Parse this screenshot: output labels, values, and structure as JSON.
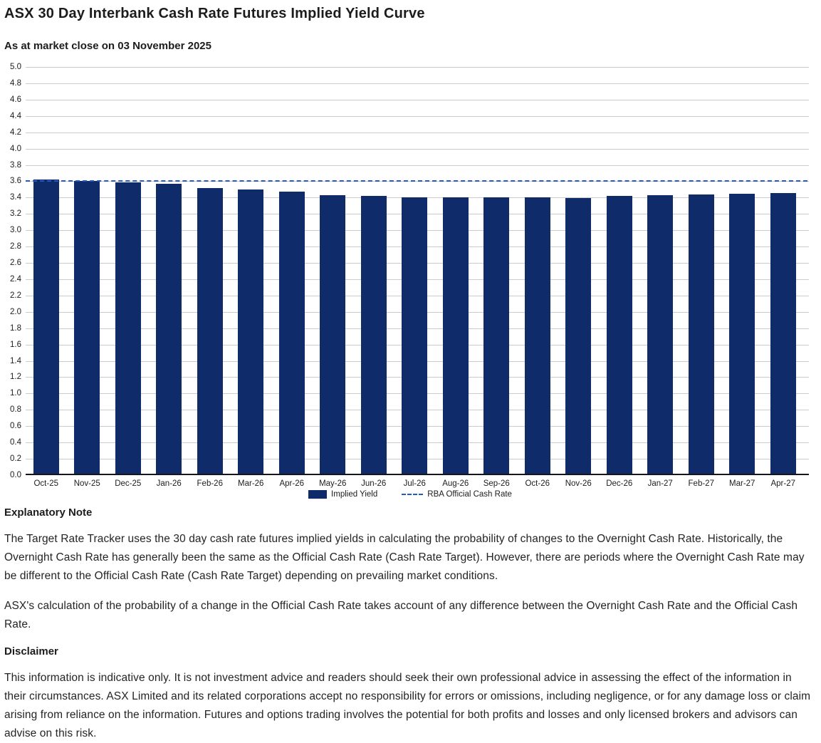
{
  "header": {
    "title": "ASX 30 Day Interbank Cash Rate Futures Implied Yield Curve",
    "subtitle": "As at market close on 03 November 2025"
  },
  "chart_data": {
    "type": "bar",
    "title": "ASX 30 Day Interbank Cash Rate Futures Implied Yield Curve",
    "xlabel": "",
    "ylabel": "",
    "ylim": [
      0.0,
      5.0
    ],
    "ytick_step": 0.2,
    "grid": true,
    "legend_position": "bottom",
    "categories": [
      "Oct-25",
      "Nov-25",
      "Dec-25",
      "Jan-26",
      "Feb-26",
      "Mar-26",
      "Apr-26",
      "May-26",
      "Jun-26",
      "Jul-26",
      "Aug-26",
      "Sep-26",
      "Oct-26",
      "Nov-26",
      "Dec-26",
      "Jan-27",
      "Feb-27",
      "Mar-27",
      "Apr-27"
    ],
    "series": [
      {
        "name": "Implied Yield",
        "type": "bar",
        "color": "#0F2B69",
        "values": [
          3.6,
          3.59,
          3.565,
          3.555,
          3.5,
          3.48,
          3.455,
          3.41,
          3.405,
          3.39,
          3.385,
          3.385,
          3.385,
          3.38,
          3.4,
          3.41,
          3.42,
          3.43,
          3.44
        ]
      },
      {
        "name": "RBA Official Cash Rate",
        "type": "line",
        "style": "dashed",
        "color": "#2358C8",
        "value": 3.6
      }
    ]
  },
  "notes": {
    "explanatory_heading": "Explanatory Note",
    "paragraph1": "The Target Rate Tracker uses the 30 day cash rate futures implied yields in calculating the probability of changes to the Overnight Cash Rate. Historically, the Overnight Cash Rate has generally been the same as the Official Cash Rate (Cash Rate Target). However, there are periods where the Overnight Cash Rate may be different to the Official Cash Rate (Cash Rate Target) depending on prevailing market conditions.",
    "paragraph2": "ASX's calculation of the probability of a change in the Official Cash Rate takes account of any difference between the Overnight Cash Rate and the Official Cash Rate.",
    "disclaimer_heading": "Disclaimer",
    "disclaimer_text": "This information is indicative only. It is not investment advice and readers should seek their own professional advice in assessing the effect of the information in their circumstances. ASX Limited and its related corporations accept no responsibility for errors or omissions, including negligence, or for any damage loss or claim arising from reliance on the information. Futures and options trading involves the potential for both profits and losses and only licensed brokers and advisors can advise on this risk."
  }
}
